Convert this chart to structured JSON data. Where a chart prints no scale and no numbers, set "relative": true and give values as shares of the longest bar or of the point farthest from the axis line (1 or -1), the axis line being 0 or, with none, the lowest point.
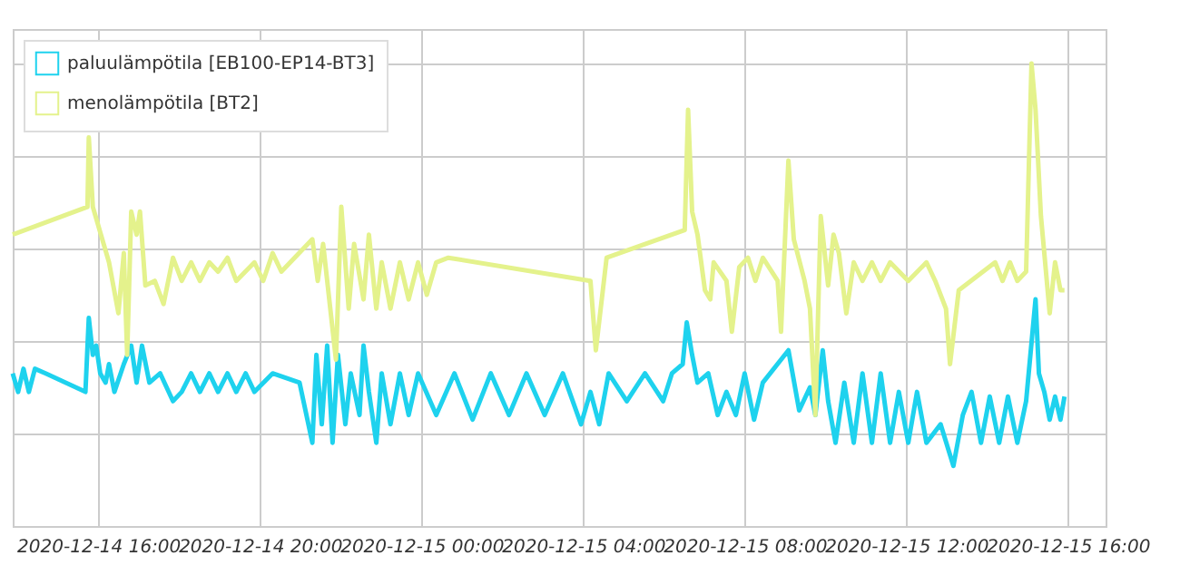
{
  "chart_data": {
    "type": "line",
    "relative": true,
    "grid": true,
    "legend": "top left",
    "xlim": [
      "2020-12-14T13:53",
      "2020-12-15T16:56"
    ],
    "xticks": [
      {
        "value": "2020-12-14T16:00",
        "label": "2020-12-14 16:00"
      },
      {
        "value": "2020-12-14T20:00",
        "label": "2020-12-14 20:00"
      },
      {
        "value": "2020-12-15T00:00",
        "label": "2020-12-15 00:00"
      },
      {
        "value": "2020-12-15T04:00",
        "label": "2020-12-15 04:00"
      },
      {
        "value": "2020-12-15T08:00",
        "label": "2020-12-15 08:00"
      },
      {
        "value": "2020-12-15T12:00",
        "label": "2020-12-15 12:00"
      },
      {
        "value": "2020-12-15T16:00",
        "label": "2020-12-15 16:00"
      }
    ],
    "series": [
      {
        "name": "paluulämpötila [EB100-EP14-BT3]",
        "color": "#1ed2ee",
        "x": [
          "2020-12-14T13:53",
          "2020-12-14T14:01",
          "2020-12-14T14:09",
          "2020-12-14T14:17",
          "2020-12-14T14:26",
          "2020-12-14T14:42",
          "2020-12-14T15:41",
          "2020-12-14T15:46",
          "2020-12-14T15:52",
          "2020-12-14T15:57",
          "2020-12-14T16:03",
          "2020-12-14T16:11",
          "2020-12-14T16:16",
          "2020-12-14T16:24",
          "2020-12-14T16:38",
          "2020-12-14T16:49",
          "2020-12-14T16:57",
          "2020-12-14T17:05",
          "2020-12-14T17:16",
          "2020-12-14T17:32",
          "2020-12-14T17:51",
          "2020-12-14T18:04",
          "2020-12-14T18:18",
          "2020-12-14T18:31",
          "2020-12-14T18:45",
          "2020-12-14T18:58",
          "2020-12-14T19:12",
          "2020-12-14T19:25",
          "2020-12-14T19:39",
          "2020-12-14T19:52",
          "2020-12-14T20:19",
          "2020-12-14T20:59",
          "2020-12-14T21:18",
          "2020-12-14T21:24",
          "2020-12-14T21:32",
          "2020-12-14T21:40",
          "2020-12-14T21:48",
          "2020-12-14T21:56",
          "2020-12-14T22:07",
          "2020-12-14T22:15",
          "2020-12-14T22:28",
          "2020-12-14T22:34",
          "2020-12-14T22:42",
          "2020-12-14T22:53",
          "2020-12-14T23:01",
          "2020-12-14T23:14",
          "2020-12-14T23:28",
          "2020-12-14T23:41",
          "2020-12-14T23:55",
          "2020-12-15T00:22",
          "2020-12-15T00:49",
          "2020-12-15T01:16",
          "2020-12-15T01:43",
          "2020-12-15T02:10",
          "2020-12-15T02:36",
          "2020-12-15T03:03",
          "2020-12-15T03:30",
          "2020-12-15T03:57",
          "2020-12-15T04:11",
          "2020-12-15T04:24",
          "2020-12-15T04:38",
          "2020-12-15T05:05",
          "2020-12-15T05:32",
          "2020-12-15T05:59",
          "2020-12-15T06:12",
          "2020-12-15T06:28",
          "2020-12-15T06:34",
          "2020-12-15T06:42",
          "2020-12-15T06:50",
          "2020-12-15T07:06",
          "2020-12-15T07:20",
          "2020-12-15T07:33",
          "2020-12-15T07:47",
          "2020-12-15T08:00",
          "2020-12-15T08:14",
          "2020-12-15T08:27",
          "2020-12-15T09:05",
          "2020-12-15T09:21",
          "2020-12-15T09:37",
          "2020-12-15T09:45",
          "2020-12-15T09:56",
          "2020-12-15T10:04",
          "2020-12-15T10:15",
          "2020-12-15T10:28",
          "2020-12-15T10:42",
          "2020-12-15T10:55",
          "2020-12-15T11:09",
          "2020-12-15T11:22",
          "2020-12-15T11:36",
          "2020-12-15T11:49",
          "2020-12-15T12:03",
          "2020-12-15T12:16",
          "2020-12-15T12:30",
          "2020-12-15T12:51",
          "2020-12-15T13:10",
          "2020-12-15T13:24",
          "2020-12-15T13:37",
          "2020-12-15T13:51",
          "2020-12-15T14:04",
          "2020-12-15T14:18",
          "2020-12-15T14:31",
          "2020-12-15T14:45",
          "2020-12-15T14:58",
          "2020-12-15T15:12",
          "2020-12-15T15:17",
          "2020-12-15T15:25",
          "2020-12-15T15:33",
          "2020-12-15T15:41",
          "2020-12-15T15:49",
          "2020-12-15T15:55"
        ],
        "values": [
          0.33,
          0.29,
          0.34,
          0.29,
          0.34,
          0.33,
          0.29,
          0.45,
          0.37,
          0.39,
          0.33,
          0.31,
          0.35,
          0.29,
          0.35,
          0.39,
          0.31,
          0.39,
          0.31,
          0.33,
          0.27,
          0.29,
          0.33,
          0.29,
          0.33,
          0.29,
          0.33,
          0.29,
          0.33,
          0.29,
          0.33,
          0.31,
          0.18,
          0.37,
          0.22,
          0.39,
          0.18,
          0.37,
          0.22,
          0.33,
          0.24,
          0.39,
          0.29,
          0.18,
          0.33,
          0.22,
          0.33,
          0.24,
          0.33,
          0.24,
          0.33,
          0.23,
          0.33,
          0.24,
          0.33,
          0.24,
          0.33,
          0.22,
          0.29,
          0.22,
          0.33,
          0.27,
          0.33,
          0.27,
          0.33,
          0.35,
          0.44,
          0.37,
          0.31,
          0.33,
          0.24,
          0.29,
          0.24,
          0.33,
          0.23,
          0.31,
          0.38,
          0.25,
          0.3,
          0.24,
          0.38,
          0.27,
          0.18,
          0.31,
          0.18,
          0.33,
          0.18,
          0.33,
          0.18,
          0.29,
          0.18,
          0.29,
          0.18,
          0.22,
          0.13,
          0.24,
          0.29,
          0.18,
          0.28,
          0.18,
          0.28,
          0.18,
          0.27,
          0.49,
          0.33,
          0.29,
          0.23,
          0.28,
          0.23,
          0.28
        ]
      },
      {
        "name": "menolämpötila [BT2]",
        "color": "#e4f28c",
        "x": [
          "2020-12-14T13:53",
          "2020-12-14T15:44",
          "2020-12-14T15:46",
          "2020-12-14T15:52",
          "2020-12-14T16:00",
          "2020-12-14T16:16",
          "2020-12-14T16:30",
          "2020-12-14T16:38",
          "2020-12-14T16:43",
          "2020-12-14T16:49",
          "2020-12-14T16:57",
          "2020-12-14T17:02",
          "2020-12-14T17:10",
          "2020-12-14T17:24",
          "2020-12-14T17:37",
          "2020-12-14T17:51",
          "2020-12-14T18:04",
          "2020-12-14T18:18",
          "2020-12-14T18:31",
          "2020-12-14T18:45",
          "2020-12-14T18:58",
          "2020-12-14T19:12",
          "2020-12-14T19:25",
          "2020-12-14T19:52",
          "2020-12-14T20:05",
          "2020-12-14T20:19",
          "2020-12-14T20:32",
          "2020-12-14T21:18",
          "2020-12-14T21:26",
          "2020-12-14T21:34",
          "2020-12-14T21:53",
          "2020-12-14T22:01",
          "2020-12-14T22:12",
          "2020-12-14T22:20",
          "2020-12-14T22:34",
          "2020-12-14T22:42",
          "2020-12-14T22:53",
          "2020-12-14T23:01",
          "2020-12-14T23:14",
          "2020-12-14T23:28",
          "2020-12-14T23:41",
          "2020-12-14T23:55",
          "2020-12-15T00:08",
          "2020-12-15T00:22",
          "2020-12-15T00:40",
          "2020-12-15T04:11",
          "2020-12-15T04:19",
          "2020-12-15T04:35",
          "2020-12-15T06:31",
          "2020-12-15T06:36",
          "2020-12-15T06:42",
          "2020-12-15T06:50",
          "2020-12-15T07:01",
          "2020-12-15T07:09",
          "2020-12-15T07:14",
          "2020-12-15T07:33",
          "2020-12-15T07:41",
          "2020-12-15T07:52",
          "2020-12-15T08:05",
          "2020-12-15T08:16",
          "2020-12-15T08:27",
          "2020-12-15T08:49",
          "2020-12-15T08:54",
          "2020-12-15T09:05",
          "2020-12-15T09:13",
          "2020-12-15T09:29",
          "2020-12-15T09:37",
          "2020-12-15T09:45",
          "2020-12-15T09:53",
          "2020-12-15T10:04",
          "2020-12-15T10:12",
          "2020-12-15T10:20",
          "2020-12-15T10:31",
          "2020-12-15T10:42",
          "2020-12-15T10:55",
          "2020-12-15T11:09",
          "2020-12-15T11:22",
          "2020-12-15T11:36",
          "2020-12-15T12:03",
          "2020-12-15T12:30",
          "2020-12-15T12:43",
          "2020-12-15T12:59",
          "2020-12-15T13:05",
          "2020-12-15T13:18",
          "2020-12-15T14:12",
          "2020-12-15T14:23",
          "2020-12-15T14:34",
          "2020-12-15T14:45",
          "2020-12-15T14:58",
          "2020-12-15T15:06",
          "2020-12-15T15:12",
          "2020-12-15T15:20",
          "2020-12-15T15:25",
          "2020-12-15T15:33",
          "2020-12-15T15:41",
          "2020-12-15T15:49",
          "2020-12-15T15:55"
        ],
        "values": [
          0.63,
          0.69,
          0.84,
          0.69,
          0.65,
          0.57,
          0.46,
          0.59,
          0.37,
          0.68,
          0.63,
          0.68,
          0.52,
          0.53,
          0.48,
          0.58,
          0.53,
          0.57,
          0.53,
          0.57,
          0.55,
          0.58,
          0.53,
          0.57,
          0.53,
          0.59,
          0.55,
          0.62,
          0.53,
          0.61,
          0.36,
          0.69,
          0.47,
          0.61,
          0.49,
          0.63,
          0.47,
          0.57,
          0.47,
          0.57,
          0.49,
          0.57,
          0.5,
          0.57,
          0.58,
          0.53,
          0.38,
          0.58,
          0.64,
          0.9,
          0.68,
          0.63,
          0.51,
          0.49,
          0.57,
          0.53,
          0.42,
          0.56,
          0.58,
          0.53,
          0.58,
          0.53,
          0.42,
          0.79,
          0.62,
          0.53,
          0.47,
          0.24,
          0.67,
          0.52,
          0.63,
          0.59,
          0.46,
          0.57,
          0.53,
          0.57,
          0.53,
          0.57,
          0.53,
          0.57,
          0.53,
          0.47,
          0.35,
          0.51,
          0.57,
          0.53,
          0.57,
          0.53,
          0.55,
          1.0,
          0.9,
          0.67,
          0.59,
          0.46,
          0.57,
          0.51,
          0.51
        ]
      }
    ]
  }
}
